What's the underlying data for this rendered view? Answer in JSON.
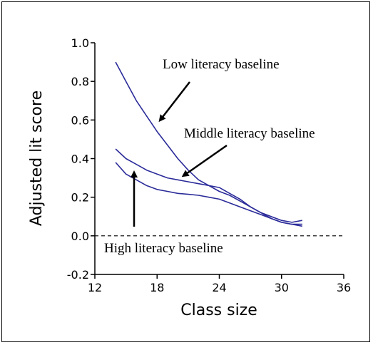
{
  "chart_data": {
    "type": "line",
    "title": "",
    "xlabel": "Class size",
    "ylabel": "Adjusted lit score",
    "xlim": [
      12,
      36
    ],
    "ylim": [
      -0.2,
      1.0
    ],
    "xticks": [
      "12",
      "18",
      "24",
      "30",
      "36"
    ],
    "yticks": [
      "-0.2",
      "0.0",
      "0.2",
      "0.4",
      "0.6",
      "0.8",
      "1.0"
    ],
    "grid": false,
    "reference_line": {
      "y": 0.0,
      "style": "dashed"
    },
    "line_color": "#2b2b9a",
    "series": [
      {
        "name": "Low literacy baseline",
        "x": [
          14,
          15,
          16,
          17,
          18,
          19,
          20,
          21,
          22,
          23,
          24,
          25,
          26,
          27,
          28,
          29,
          30,
          31,
          32
        ],
        "values": [
          0.9,
          0.8,
          0.7,
          0.62,
          0.54,
          0.47,
          0.4,
          0.34,
          0.29,
          0.26,
          0.23,
          0.21,
          0.18,
          0.15,
          0.12,
          0.09,
          0.07,
          0.06,
          0.06
        ]
      },
      {
        "name": "Middle literacy baseline",
        "x": [
          14,
          15,
          16,
          17,
          18,
          19,
          20,
          21,
          22,
          23,
          24,
          25,
          26,
          27,
          28,
          29,
          30,
          31,
          32
        ],
        "values": [
          0.45,
          0.4,
          0.37,
          0.34,
          0.32,
          0.3,
          0.29,
          0.28,
          0.27,
          0.26,
          0.25,
          0.22,
          0.19,
          0.15,
          0.12,
          0.1,
          0.08,
          0.07,
          0.08
        ]
      },
      {
        "name": "High literacy baseline",
        "x": [
          14,
          15,
          16,
          17,
          18,
          19,
          20,
          21,
          22,
          23,
          24,
          25,
          26,
          27,
          28,
          29,
          30,
          31,
          32
        ],
        "values": [
          0.38,
          0.32,
          0.29,
          0.26,
          0.24,
          0.23,
          0.22,
          0.215,
          0.21,
          0.2,
          0.19,
          0.17,
          0.15,
          0.13,
          0.11,
          0.09,
          0.07,
          0.06,
          0.05
        ]
      }
    ],
    "annotations": [
      {
        "text": "Low literacy baseline",
        "series": "Low literacy baseline"
      },
      {
        "text": "Middle literacy baseline",
        "series": "Middle literacy baseline"
      },
      {
        "text": "High literacy baseline",
        "series": "High literacy baseline"
      }
    ]
  }
}
